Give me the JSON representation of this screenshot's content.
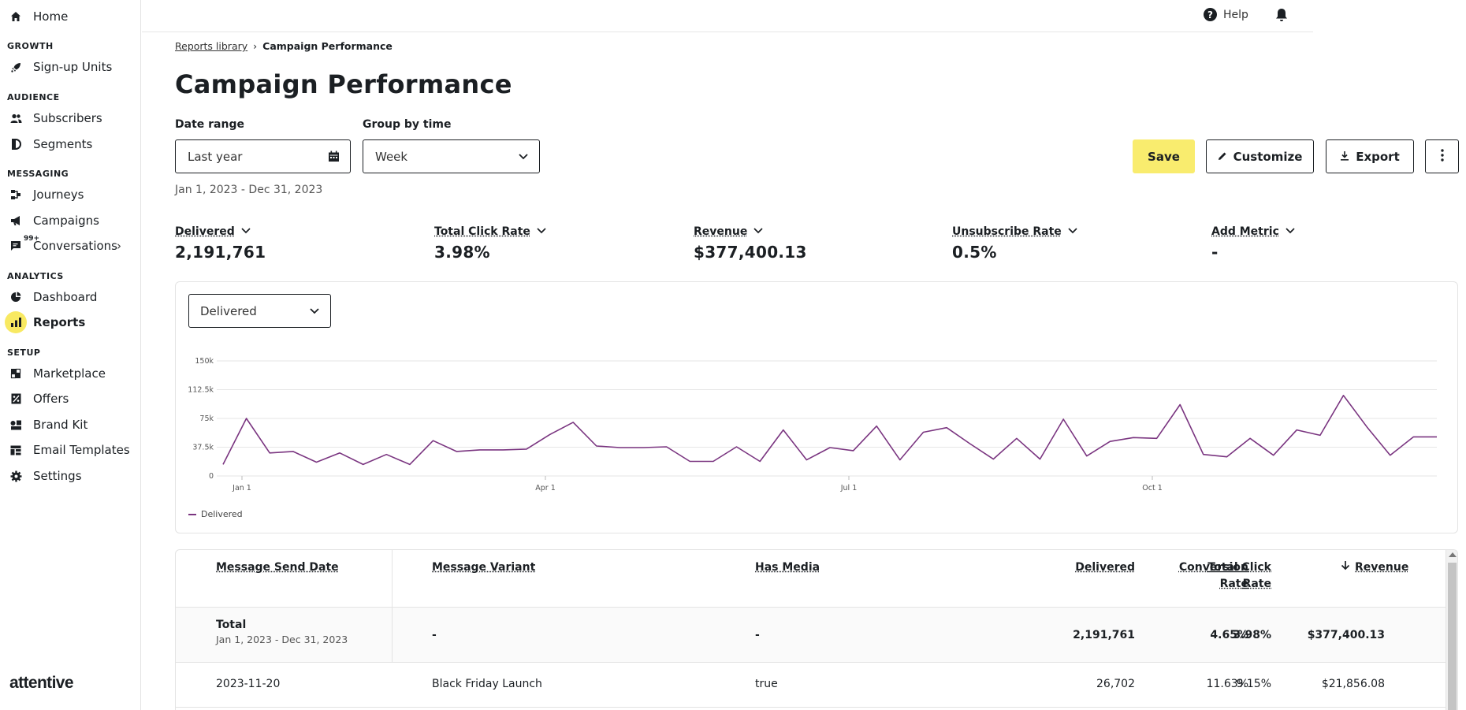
{
  "sidebar": {
    "home": "Home",
    "sections": {
      "growth": "GROWTH",
      "audience": "AUDIENCE",
      "messaging": "MESSAGING",
      "analytics": "ANALYTICS",
      "setup": "SETUP"
    },
    "items": {
      "signup_units": "Sign-up Units",
      "subscribers": "Subscribers",
      "segments": "Segments",
      "journeys": "Journeys",
      "campaigns": "Campaigns",
      "conversations": "Conversations",
      "conversations_badge": "99+",
      "dashboard": "Dashboard",
      "reports": "Reports",
      "marketplace": "Marketplace",
      "offers": "Offers",
      "brand_kit": "Brand Kit",
      "email_templates": "Email Templates",
      "settings": "Settings"
    },
    "active": "reports",
    "logo": "attentive"
  },
  "topbar": {
    "help": "Help"
  },
  "breadcrumb": {
    "parent": "Reports library",
    "current": "Campaign Performance"
  },
  "page_title": "Campaign Performance",
  "filters": {
    "date_range_label": "Date range",
    "date_range_value": "Last year",
    "date_range_sub": "Jan 1, 2023 - Dec 31, 2023",
    "group_label": "Group by time",
    "group_value": "Week"
  },
  "actions": {
    "save": "Save",
    "customize": "Customize",
    "export": "Export"
  },
  "metrics": [
    {
      "label": "Delivered",
      "value": "2,191,761"
    },
    {
      "label": "Total Click Rate",
      "value": "3.98%"
    },
    {
      "label": "Revenue",
      "value": "$377,400.13"
    },
    {
      "label": "Unsubscribe Rate",
      "value": "0.5%"
    },
    {
      "label": "Add Metric",
      "value": "-"
    }
  ],
  "chart_select": "Delivered",
  "chart_data": {
    "type": "line",
    "ylim": [
      0,
      150000
    ],
    "ytick_labels": [
      "0",
      "37.5k",
      "75k",
      "112.5k",
      "150k"
    ],
    "yticks": [
      0,
      37500,
      75000,
      112500,
      150000
    ],
    "xtick_labels": [
      "Jan 1",
      "Apr 1",
      "Jul 1",
      "Oct 1"
    ],
    "xtick_weeks": [
      1,
      14,
      27,
      40
    ],
    "series": [
      {
        "name": "Delivered",
        "color": "#7a3580",
        "values": [
          15000,
          75000,
          30000,
          32000,
          18000,
          30000,
          15000,
          28000,
          15000,
          46000,
          32000,
          34000,
          34000,
          35000,
          54000,
          70000,
          39000,
          37000,
          37000,
          38000,
          19000,
          19000,
          38000,
          19000,
          60000,
          21000,
          37000,
          33000,
          65000,
          21000,
          57000,
          63000,
          42000,
          22000,
          49000,
          22000,
          74000,
          26000,
          45000,
          50000,
          49000,
          93000,
          28000,
          25000,
          49000,
          27000,
          60000,
          53000,
          105000,
          64000,
          27000,
          51000,
          51000
        ]
      }
    ],
    "legend": "bottom-left"
  },
  "table": {
    "columns": [
      "Message Send Date",
      "Message Variant",
      "Has Media",
      "Delivered",
      "Total Click Rate",
      "Conversion Rate",
      "Revenue"
    ],
    "col_click_1": "Total Click",
    "col_click_2": "Rate",
    "col_conv_1": "Conversion",
    "col_conv_2": "Rate",
    "total": {
      "label": "Total",
      "range": "Jan 1, 2023 - Dec 31, 2023",
      "variant": "-",
      "media": "-",
      "delivered": "2,191,761",
      "click_rate": "3.98%",
      "conversion_rate": "4.65%",
      "revenue": "$377,400.13"
    },
    "rows": [
      {
        "date": "2023-11-20",
        "variant": "Black Friday Launch",
        "media": "true",
        "delivered": "26,702",
        "click_rate": "9.15%",
        "conversion_rate": "11.63%",
        "revenue": "$21,856.08"
      }
    ]
  }
}
